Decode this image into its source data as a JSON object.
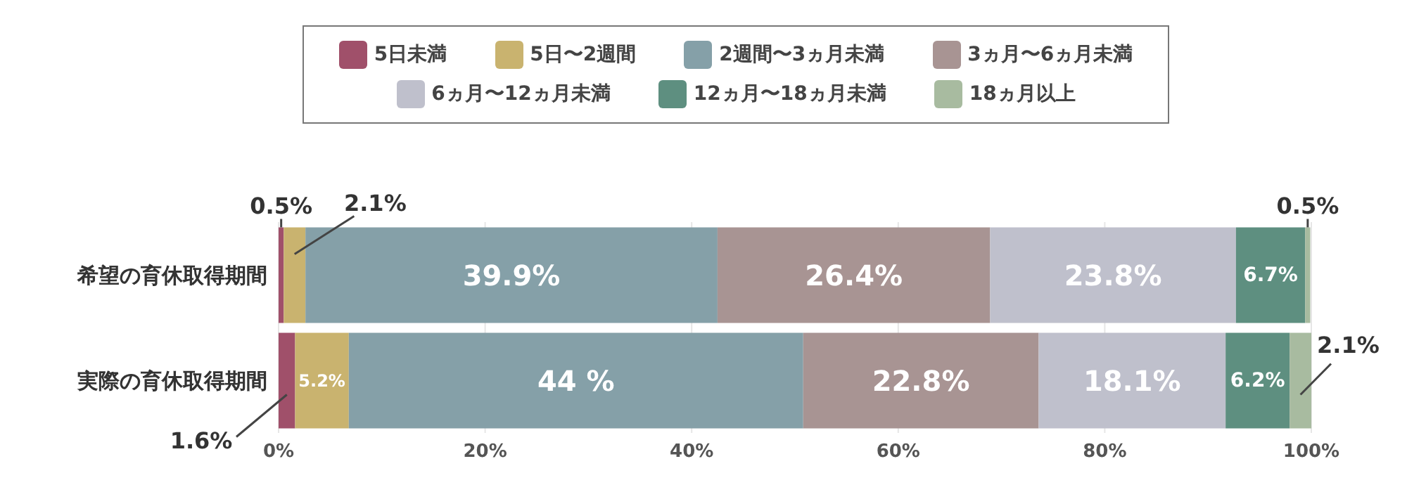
{
  "chart_data": {
    "type": "bar",
    "orientation": "horizontal",
    "stacked": true,
    "categories": [
      "希望の育休取得期間",
      "実際の育休取得期間"
    ],
    "series": [
      {
        "name": "5日未満",
        "color": "#a0506a",
        "values": [
          0.5,
          1.6
        ],
        "value_labels": [
          "0.5%",
          "1.6%"
        ]
      },
      {
        "name": "5日〜2週間",
        "color": "#c9b36f",
        "values": [
          2.1,
          5.2
        ],
        "value_labels": [
          "2.1%",
          "5.2%"
        ]
      },
      {
        "name": "2週間〜3ヵ月未満",
        "color": "#85a0a8",
        "values": [
          39.9,
          44
        ],
        "value_labels": [
          "39.9%",
          "44 %"
        ]
      },
      {
        "name": "3ヵ月〜6ヵ月未満",
        "color": "#a89493",
        "values": [
          26.4,
          22.8
        ],
        "value_labels": [
          "26.4%",
          "22.8%"
        ]
      },
      {
        "name": "6ヵ月〜12ヵ月未満",
        "color": "#bfc0cc",
        "values": [
          23.8,
          18.1
        ],
        "value_labels": [
          "23.8%",
          "18.1%"
        ]
      },
      {
        "name": "12ヵ月〜18ヵ月未満",
        "color": "#5e8f80",
        "values": [
          6.7,
          6.2
        ],
        "value_labels": [
          "6.7%",
          "6.2%"
        ]
      },
      {
        "name": "18ヵ月以上",
        "color": "#a8bba0",
        "values": [
          0.5,
          2.1
        ],
        "value_labels": [
          "0.5%",
          "2.1%"
        ]
      }
    ],
    "xlim": [
      0,
      100
    ],
    "xticks": [
      {
        "value": 0,
        "label": "0%"
      },
      {
        "value": 20,
        "label": "20%"
      },
      {
        "value": 40,
        "label": "40%"
      },
      {
        "value": 60,
        "label": "60%"
      },
      {
        "value": 80,
        "label": "80%"
      },
      {
        "value": 100,
        "label": "100%"
      }
    ],
    "grid": "x",
    "legend": "top"
  }
}
